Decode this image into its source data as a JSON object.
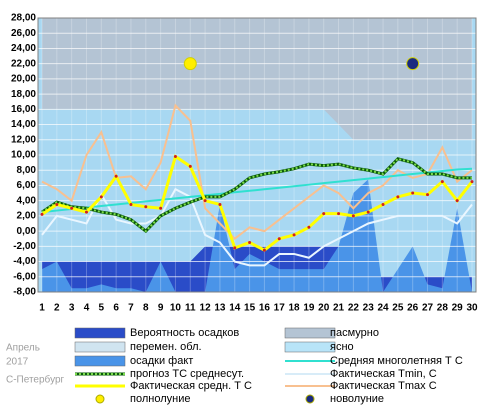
{
  "chart_data": {
    "type": "weather",
    "categories": [
      "1",
      "2",
      "3",
      "4",
      "5",
      "6",
      "7",
      "8",
      "9",
      "10",
      "11",
      "12",
      "13",
      "14",
      "15",
      "16",
      "17",
      "18",
      "19",
      "20",
      "21",
      "22",
      "23",
      "24",
      "25",
      "26",
      "27",
      "28",
      "29",
      "30"
    ],
    "ylim": [
      -8,
      28
    ],
    "yticks": [
      {
        "value": -8,
        "label": "-8,00"
      },
      {
        "value": -6,
        "label": "-6,00"
      },
      {
        "value": -4,
        "label": "-4,00"
      },
      {
        "value": -2,
        "label": "-2,00"
      },
      {
        "value": 0,
        "label": "0,00"
      },
      {
        "value": 2,
        "label": "2,00"
      },
      {
        "value": 4,
        "label": "4,00"
      },
      {
        "value": 6,
        "label": "6,00"
      },
      {
        "value": 8,
        "label": "8,00"
      },
      {
        "value": 10,
        "label": "10,00"
      },
      {
        "value": 12,
        "label": "12,00"
      },
      {
        "value": 14,
        "label": "14,00"
      },
      {
        "value": 16,
        "label": "16,00"
      },
      {
        "value": 18,
        "label": "18,00"
      },
      {
        "value": 20,
        "label": "20,00"
      },
      {
        "value": 22,
        "label": "22,00"
      },
      {
        "value": 24,
        "label": "24,00"
      },
      {
        "value": 26,
        "label": "26,00"
      },
      {
        "value": 28,
        "label": "28,00"
      }
    ],
    "grid": true,
    "side_labels": [
      "Апрель",
      "2017",
      "С-Петербург"
    ],
    "areas": [
      {
        "name": "пасмурно",
        "color": "#b4c4d4",
        "from": "top",
        "values": [
          16,
          16,
          16,
          16,
          16,
          16,
          16,
          16,
          16,
          16,
          16,
          16,
          16,
          16,
          16,
          16,
          16,
          16,
          16,
          16,
          14,
          12,
          12,
          12,
          12,
          12,
          12,
          12,
          12,
          12
        ]
      },
      {
        "name": "Вероятность осадков",
        "color": "#2a4cc8",
        "from": "bottom",
        "values": [
          -4,
          -4,
          -4,
          -4,
          -4,
          -4,
          -4,
          -4,
          -4,
          -4,
          -4,
          -2,
          -2,
          -2,
          -2,
          -2,
          -2,
          -2,
          -2,
          -2,
          -2,
          -6,
          -6,
          -6,
          -6,
          -6,
          -6,
          -6,
          -6,
          -6
        ]
      },
      {
        "name": "осадки факт",
        "color": "#4a94e8",
        "from": "bottom",
        "values": [
          -5,
          -4,
          -7.5,
          -7.5,
          -7,
          -7.5,
          -7.5,
          -8,
          -4,
          -8,
          -8,
          -8,
          3.5,
          -5,
          -3,
          -4,
          -5,
          -5,
          -5,
          -5,
          -2,
          5,
          6.8,
          -8,
          -5,
          -2,
          -7,
          -7.5,
          3,
          -8
        ]
      }
    ],
    "legend_only": [
      {
        "name": "перемен. обл.",
        "color": "#d0e4f0"
      },
      {
        "name": "ясно",
        "color": "#b8e4f8"
      }
    ],
    "series": [
      {
        "name": "Фактическая Tmax C",
        "color": "#f8c090",
        "width": 2,
        "values": [
          6.5,
          5.5,
          4,
          10,
          13,
          7,
          7.2,
          5.5,
          9,
          16.5,
          14.5,
          3,
          1,
          -1,
          0.5,
          0,
          1.5,
          3,
          4.5,
          6,
          5,
          3,
          5,
          6,
          8,
          7,
          7.5,
          11,
          6.5,
          8
        ]
      },
      {
        "name": "Фактическая Tmin, C",
        "color": "#eaf6ff",
        "width": 2,
        "values": [
          -0.5,
          2,
          1.5,
          1,
          4.8,
          1.5,
          1,
          1,
          2,
          5.5,
          4.5,
          -0.5,
          -1.5,
          -4,
          -4.5,
          -4.5,
          -3,
          -3,
          -3.5,
          -2,
          -1,
          0,
          1,
          1.5,
          2,
          2,
          2,
          2,
          1,
          3.5
        ]
      },
      {
        "name": "Средняя многолетняя Т С",
        "color": "#30e0d0",
        "width": 2,
        "values": [
          2.5,
          2.7,
          2.9,
          3.1,
          3.3,
          3.5,
          3.7,
          3.9,
          4.1,
          4.3,
          4.5,
          4.7,
          4.9,
          5.1,
          5.3,
          5.5,
          5.7,
          5.9,
          6.1,
          6.3,
          6.5,
          6.7,
          6.9,
          7.1,
          7.3,
          7.5,
          7.7,
          7.9,
          8.1,
          8.2
        ]
      },
      {
        "name": "прогноз ТС среднесут.",
        "color": "#1a8a1a",
        "width": 3,
        "dotted": true,
        "values": [
          2.5,
          3.8,
          3.2,
          3,
          2.5,
          2.2,
          1.5,
          0,
          2,
          3,
          3.8,
          4.5,
          4.5,
          5.5,
          7,
          7.5,
          7.8,
          8.2,
          8.8,
          8.6,
          8.8,
          8.3,
          8,
          7.5,
          9.5,
          9,
          7.5,
          7.5,
          7,
          7
        ]
      },
      {
        "name": "Фактическая средн. Т С",
        "color": "#ffff00",
        "width": 3,
        "values": [
          2.2,
          3.5,
          3,
          2.5,
          4.5,
          7.2,
          3.5,
          3.2,
          3,
          9.8,
          8.5,
          4,
          3.5,
          -2.2,
          -1.5,
          -2.5,
          -1,
          -0.5,
          0.5,
          2.3,
          2.3,
          2,
          2.5,
          3.5,
          4.5,
          5,
          4.8,
          6.5,
          4,
          6.5
        ]
      }
    ],
    "moons": [
      {
        "name": "полнолуние",
        "color": "#ffee00",
        "day": 11,
        "y": 22
      },
      {
        "name": "новолуние",
        "color": "#1a2a80",
        "day": 26,
        "y": 22
      }
    ]
  }
}
